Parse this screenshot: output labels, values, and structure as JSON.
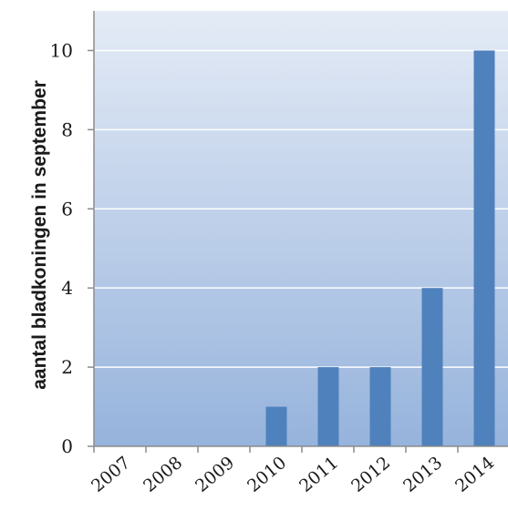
{
  "chart_data": {
    "type": "bar",
    "title": "",
    "xlabel": "",
    "ylabel": "aantal bladkoningen in september",
    "categories": [
      "2007",
      "2008",
      "2009",
      "2010",
      "2011",
      "2012",
      "2013",
      "2014"
    ],
    "values": [
      0,
      0,
      0,
      1,
      2,
      2,
      4,
      10
    ],
    "ylim": [
      0,
      11
    ],
    "yticks": [
      0,
      2,
      4,
      6,
      8,
      10
    ],
    "grid": true,
    "legend": "none",
    "colors": {
      "bar": "#4f81bd",
      "plot_top": "#e4ebf6",
      "plot_bottom": "#96b3dc",
      "gridline": "#ffffff",
      "axis": "#8c8c8c"
    }
  }
}
